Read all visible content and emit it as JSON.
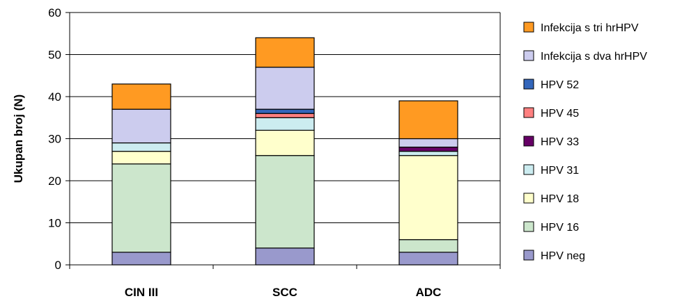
{
  "chart_data": {
    "type": "bar",
    "stacked": true,
    "ylabel": "Ukupan broj (N)",
    "ylim": [
      0,
      60
    ],
    "yticks": [
      "0",
      "10",
      "20",
      "30",
      "40",
      "50",
      "60"
    ],
    "grid": true,
    "legend_position": "right",
    "categories": [
      "CIN III",
      "SCC",
      "ADC"
    ],
    "series": [
      {
        "name": "HPV neg",
        "color": "#9999cc",
        "values": [
          3,
          4,
          3
        ]
      },
      {
        "name": "HPV 16",
        "color": "#cce6cc",
        "values": [
          21,
          22,
          3
        ]
      },
      {
        "name": "HPV 18",
        "color": "#ffffcc",
        "values": [
          3,
          6,
          20
        ]
      },
      {
        "name": "HPV 31",
        "color": "#ccecf0",
        "values": [
          2,
          3,
          1
        ]
      },
      {
        "name": "HPV 33",
        "color": "#660066",
        "values": [
          0,
          0,
          1
        ]
      },
      {
        "name": "HPV 45",
        "color": "#ff8080",
        "values": [
          0,
          1,
          0
        ]
      },
      {
        "name": "HPV 52",
        "color": "#3366bb",
        "values": [
          0,
          1,
          0
        ]
      },
      {
        "name": "Infekcija s dva hrHPV",
        "color": "#ccccee",
        "values": [
          8,
          10,
          2
        ]
      },
      {
        "name": "Infekcija s tri hrHPV",
        "color": "#ff9a22",
        "values": [
          6,
          7,
          9
        ]
      }
    ]
  }
}
